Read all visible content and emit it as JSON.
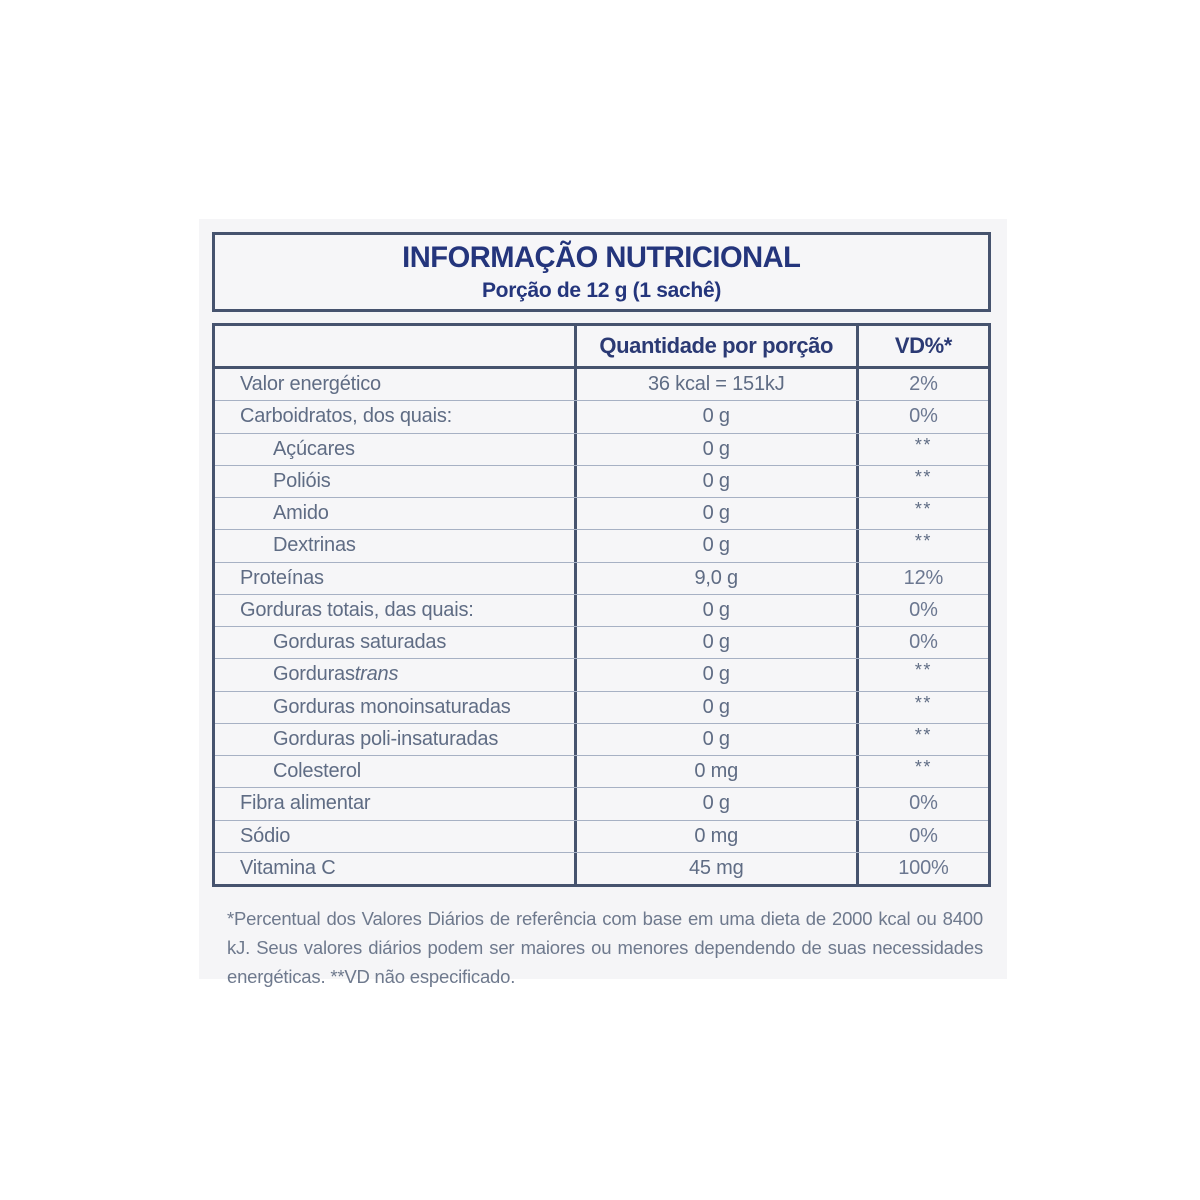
{
  "label": {
    "title": "INFORMAÇÃO NUTRICIONAL",
    "serving": "Porção de 12 g (1 sachê)"
  },
  "table": {
    "headers": {
      "quantity": "Quantidade por porção",
      "daily_value": "VD%*"
    },
    "rows": [
      {
        "label": "Valor energético",
        "qty": "36 kcal = 151kJ",
        "dv": "2%",
        "indent": false
      },
      {
        "label": "Carboidratos, dos quais:",
        "qty": "0 g",
        "dv": "0%",
        "indent": false
      },
      {
        "label": "Açúcares",
        "qty": "0 g",
        "dv": "**",
        "indent": true
      },
      {
        "label": "Polióis",
        "qty": "0 g",
        "dv": "**",
        "indent": true
      },
      {
        "label": "Amido",
        "qty": "0 g",
        "dv": "**",
        "indent": true
      },
      {
        "label": "Dextrinas",
        "qty": "0 g",
        "dv": "**",
        "indent": true
      },
      {
        "label": "Proteínas",
        "qty": "9,0 g",
        "dv": "12%",
        "indent": false
      },
      {
        "label": "Gorduras totais, das quais:",
        "qty": "0 g",
        "dv": "0%",
        "indent": false
      },
      {
        "label": "Gorduras saturadas",
        "qty": "0 g",
        "dv": "0%",
        "indent": true
      },
      {
        "label": "Gorduras ",
        "label_italic": "trans",
        "qty": "0 g",
        "dv": "**",
        "indent": true
      },
      {
        "label": "Gorduras monoinsaturadas",
        "qty": "0 g",
        "dv": "**",
        "indent": true
      },
      {
        "label": "Gorduras poli-insaturadas",
        "qty": "0 g",
        "dv": "**",
        "indent": true
      },
      {
        "label": "Colesterol",
        "qty": "0 mg",
        "dv": "**",
        "indent": true
      },
      {
        "label": "Fibra alimentar",
        "qty": "0 g",
        "dv": "0%",
        "indent": false
      },
      {
        "label": "Sódio",
        "qty": "0 mg",
        "dv": "0%",
        "indent": false
      },
      {
        "label": "Vitamina C",
        "qty": "45 mg",
        "dv": "100%",
        "indent": false
      }
    ]
  },
  "footnote": "*Percentual dos Valores Diários de referência com base em uma dieta de 2000 kcal ou 8400 kJ. Seus valores diários podem ser maiores ou menores dependendo de suas necessidades energéticas. **VD não especificado."
}
